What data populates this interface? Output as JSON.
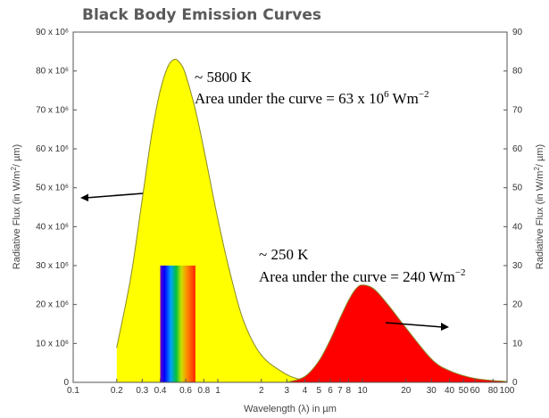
{
  "chart_data": {
    "type": "area",
    "title": "Black Body Emission Curves",
    "xlabel": "Wavelength (λ) in µm",
    "ylabel": "Radiative Flux (in W/m",
    "ylabel_sup": "2",
    "ylabel_end": "/ µm)",
    "x_scale": "log",
    "xlim": [
      0.1,
      100
    ],
    "ylim": [
      0,
      90
    ],
    "x_ticks": [
      {
        "v": 0.1,
        "label": "0.1"
      },
      {
        "v": 0.2,
        "label": "0.2"
      },
      {
        "v": 0.3,
        "label": "0.3"
      },
      {
        "v": 0.4,
        "label": "0.4"
      },
      {
        "v": 0.6,
        "label": "0.6"
      },
      {
        "v": 0.8,
        "label": "0.8"
      },
      {
        "v": 1,
        "label": "1"
      },
      {
        "v": 2,
        "label": "2"
      },
      {
        "v": 3,
        "label": "3"
      },
      {
        "v": 4,
        "label": "4"
      },
      {
        "v": 5,
        "label": "5"
      },
      {
        "v": 6,
        "label": "6"
      },
      {
        "v": 7,
        "label": "7"
      },
      {
        "v": 8,
        "label": "8"
      },
      {
        "v": 10,
        "label": "10"
      },
      {
        "v": 20,
        "label": "20"
      },
      {
        "v": 30,
        "label": "30"
      },
      {
        "v": 40,
        "label": "40"
      },
      {
        "v": 50,
        "label": "50"
      },
      {
        "v": 60,
        "label": "60"
      },
      {
        "v": 80,
        "label": "80"
      },
      {
        "v": 100,
        "label": "100"
      }
    ],
    "y_ticks_left": [
      "0",
      "10 x 10⁶",
      "20 x 10⁶",
      "30 x 10⁶",
      "40 x 10⁶",
      "50 x 10⁶",
      "60 x 10⁶",
      "70 x 10⁶",
      "80 x 10⁶",
      "90 x 10⁶"
    ],
    "y_ticks_right": [
      "0",
      "10",
      "20",
      "30",
      "40",
      "50",
      "60",
      "70",
      "80",
      "90"
    ],
    "y_tick_values": [
      0,
      10,
      20,
      30,
      40,
      50,
      60,
      70,
      80,
      90
    ],
    "series": [
      {
        "color": "#ffff00",
        "axis": "left",
        "x": [
          0.2,
          0.25,
          0.3,
          0.35,
          0.4,
          0.45,
          0.5,
          0.55,
          0.6,
          0.7,
          0.8,
          1,
          1.2,
          1.5,
          2,
          3,
          4
        ],
        "y": [
          9,
          27,
          47,
          64,
          75,
          81,
          83,
          82,
          79,
          70,
          60,
          42,
          29,
          16,
          7,
          2,
          0.5
        ]
      },
      {
        "color": "#ff0000",
        "axis": "right",
        "x": [
          3,
          4,
          5,
          6,
          7,
          8,
          9,
          10,
          12,
          15,
          20,
          30,
          40,
          60,
          100
        ],
        "y": [
          0,
          1.5,
          5.5,
          11,
          16.5,
          21,
          24,
          25,
          24,
          20,
          14,
          6,
          3,
          1,
          0.2
        ]
      }
    ],
    "visible_band": {
      "from": 0.4,
      "to": 0.7,
      "height": 30
    },
    "annotations": [
      {
        "line1": "~ 5800 K",
        "line2_pre": "Area under the curve = 63 x 10",
        "line2_sup": "6",
        "line2_post": " Wm",
        "line2_sup2": "−2"
      },
      {
        "line1": "~ 250 K",
        "line2_pre": "Area under the curve = 240 Wm",
        "line2_sup": "−2"
      }
    ],
    "grid": false
  },
  "colors": {
    "axis": "#555555",
    "curve_edge": "#8a8a2a",
    "arrow": "#000000"
  }
}
